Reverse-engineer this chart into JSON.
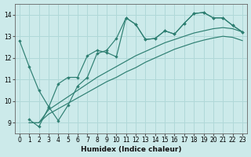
{
  "xlabel": "Humidex (Indice chaleur)",
  "bg_color": "#cceaea",
  "grid_color": "#b0d8d8",
  "line_color": "#2e7f72",
  "xlim": [
    -0.5,
    23.5
  ],
  "ylim": [
    8.5,
    14.5
  ],
  "xticks": [
    0,
    1,
    2,
    3,
    4,
    5,
    6,
    7,
    8,
    9,
    10,
    11,
    12,
    13,
    14,
    15,
    16,
    17,
    18,
    19,
    20,
    21,
    22,
    23
  ],
  "yticks": [
    9,
    10,
    11,
    12,
    13,
    14
  ],
  "series_marked": [
    {
      "x": [
        0,
        1,
        2,
        3,
        4,
        5,
        6,
        7,
        8,
        9,
        10,
        11,
        12,
        13,
        14,
        15,
        16,
        17,
        18,
        19,
        20,
        21,
        22,
        23
      ],
      "y": [
        12.8,
        11.6,
        10.5,
        9.75,
        9.1,
        9.8,
        10.7,
        11.1,
        12.2,
        12.35,
        12.9,
        13.85,
        13.55,
        12.85,
        12.9,
        13.25,
        13.1,
        13.6,
        14.05,
        14.1,
        13.85,
        13.85,
        13.5,
        13.2
      ]
    },
    {
      "x": [
        1,
        2,
        3,
        4,
        5,
        6,
        7,
        8,
        9,
        10,
        11,
        12,
        13,
        14,
        15,
        16,
        17,
        18,
        19,
        20,
        21,
        22,
        23
      ],
      "y": [
        9.15,
        8.82,
        9.7,
        10.8,
        11.1,
        11.1,
        12.1,
        12.35,
        12.25,
        12.05,
        13.85,
        13.55,
        12.85,
        12.9,
        13.25,
        13.1,
        13.6,
        14.05,
        14.1,
        13.85,
        13.85,
        13.5,
        13.2
      ]
    }
  ],
  "series_smooth": [
    {
      "x": [
        1,
        2,
        3,
        4,
        5,
        6,
        7,
        8,
        9,
        10,
        11,
        12,
        13,
        14,
        15,
        16,
        17,
        18,
        19,
        20,
        21,
        22,
        23
      ],
      "y": [
        9.0,
        9.0,
        9.6,
        9.9,
        10.2,
        10.5,
        10.8,
        11.1,
        11.35,
        11.6,
        11.85,
        12.1,
        12.3,
        12.5,
        12.7,
        12.85,
        13.0,
        13.15,
        13.25,
        13.35,
        13.4,
        13.35,
        13.2
      ]
    },
    {
      "x": [
        1,
        2,
        3,
        4,
        5,
        6,
        7,
        8,
        9,
        10,
        11,
        12,
        13,
        14,
        15,
        16,
        17,
        18,
        19,
        20,
        21,
        22,
        23
      ],
      "y": [
        9.0,
        9.0,
        9.4,
        9.65,
        9.9,
        10.15,
        10.4,
        10.65,
        10.9,
        11.1,
        11.35,
        11.55,
        11.8,
        12.0,
        12.2,
        12.4,
        12.55,
        12.7,
        12.82,
        12.92,
        13.0,
        12.95,
        12.8
      ]
    }
  ]
}
